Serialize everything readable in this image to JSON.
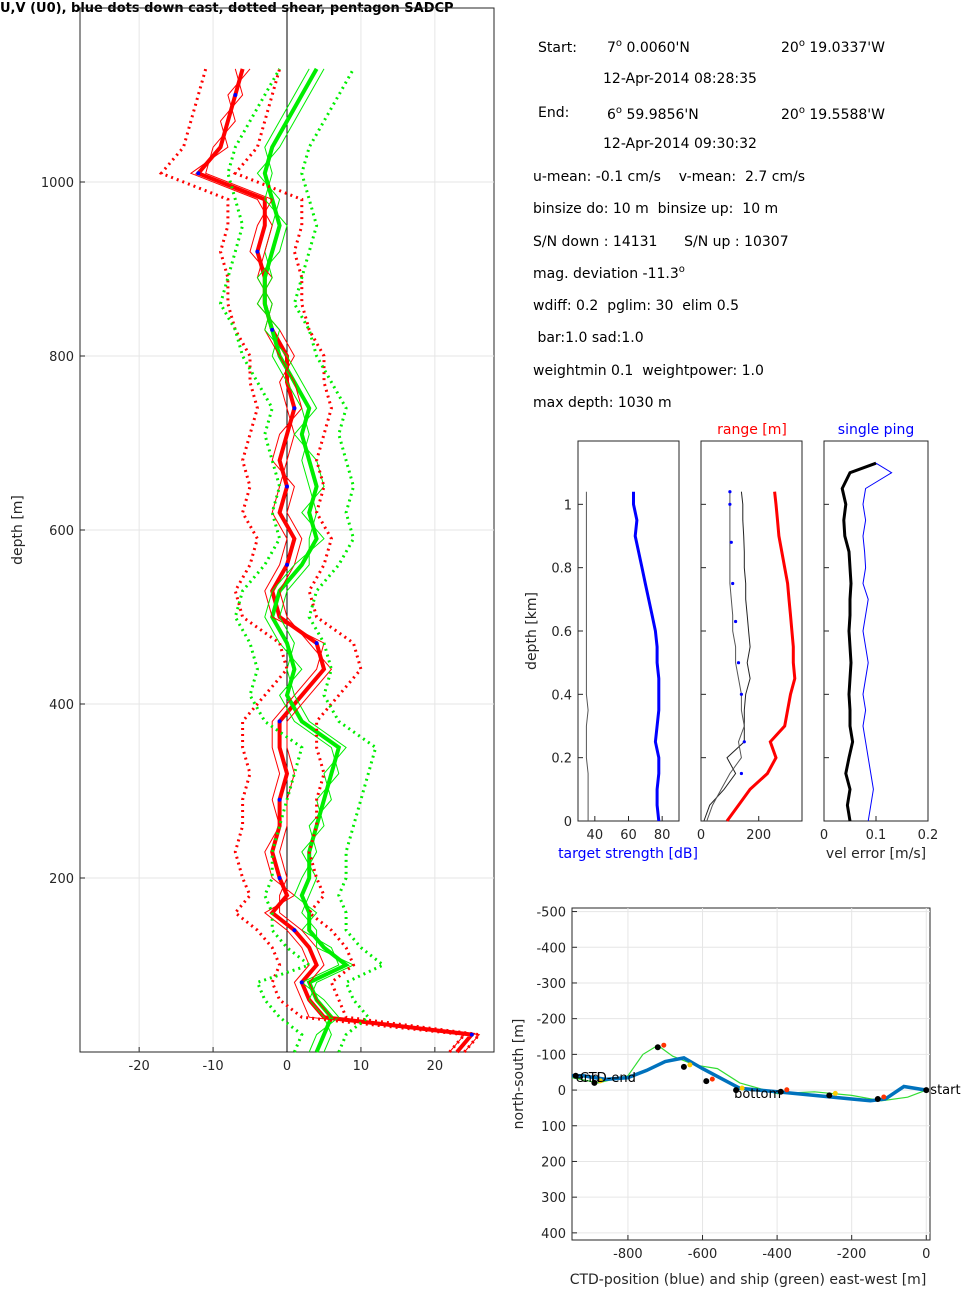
{
  "figure_title": "U,V (U0), blue dots down cast, dotted shear, pentagon SADCP",
  "info": {
    "start_label": "Start:",
    "start_lat_deg": "7",
    "start_lat_min": " 0.0060'N",
    "start_lon_deg": "20",
    "start_lon_min": " 19.0337'W",
    "start_time": "12-Apr-2014 08:28:35",
    "end_label": "End:",
    "end_lat_deg": "6",
    "end_lat_min": " 59.9856'N",
    "end_lon_deg": "20",
    "end_lon_min": " 19.5588'W",
    "end_time": "12-Apr-2014 09:30:32",
    "mean": "u-mean: -0.1 cm/s    v-mean:  2.7 cm/s",
    "binsize": "binsize do: 10 m  binsize up:  10 m",
    "sn": "S/N down : 14131      S/N up : 10307",
    "magdev": "mag. deviation -11.3",
    "params1": "wdiff: 0.2  pglim: 30  elim 0.5",
    "params2": " bar:1.0 sad:1.0",
    "params3": "weightmin 0.1  weightpower: 1.0",
    "maxdepth": "max depth: 1030 m",
    "degree_symbol": "o"
  },
  "colors": {
    "u": "#ff0000",
    "v": "#00ee00",
    "down": "#0000ff",
    "ship": "#33dd33",
    "ctd": "#0072bd",
    "grid": "#e6e6e6"
  },
  "chart_data": [
    {
      "type": "line",
      "id": "velocity_profile",
      "ylabel": "depth [m]",
      "xlim": [
        -28,
        28
      ],
      "ylim": [
        1200,
        0
      ],
      "xticks": [
        -20,
        -10,
        0,
        10,
        20
      ],
      "yticks": [
        200,
        400,
        600,
        800,
        1000
      ],
      "grid": true,
      "depth": [
        0,
        20,
        40,
        60,
        80,
        100,
        120,
        140,
        160,
        180,
        200,
        230,
        260,
        290,
        320,
        350,
        380,
        410,
        440,
        470,
        500,
        530,
        560,
        590,
        620,
        650,
        680,
        710,
        740,
        770,
        800,
        830,
        860,
        890,
        920,
        950,
        980,
        1010,
        1040,
        1070,
        1100,
        1130
      ],
      "series": [
        {
          "values": [
            23,
            25,
            5,
            3,
            2,
            4,
            3,
            1,
            -2,
            0,
            -1,
            -2,
            -1,
            -1,
            0,
            -1,
            -1,
            2,
            5,
            4,
            -1,
            -2,
            0,
            1,
            -1,
            0,
            -1,
            0,
            1,
            0,
            0,
            -2,
            -3,
            -3,
            -4,
            -3,
            -3,
            -12,
            -9,
            -8,
            -7,
            -6
          ]
        },
        {
          "values": [
            4,
            5,
            6,
            4,
            3,
            8,
            5,
            3,
            3,
            2,
            3,
            3,
            4,
            5,
            6,
            7,
            2,
            0,
            1,
            0,
            -2,
            -1,
            2,
            4,
            3,
            4,
            3,
            2,
            3,
            1,
            -1,
            -2,
            -3,
            -3,
            -2,
            -1,
            -2,
            -3,
            -2,
            0,
            2,
            4
          ]
        },
        {
          "values": [
            22,
            24,
            3,
            2,
            1,
            3,
            2,
            0,
            -3,
            1,
            -2,
            -3,
            -1,
            -2,
            -1,
            -2,
            -2,
            1,
            4,
            5,
            -2,
            -3,
            -1,
            0,
            -2,
            -1,
            0,
            1,
            0,
            -1,
            1,
            -1,
            -4,
            -2,
            -5,
            -4,
            -2,
            -11,
            -10,
            -7,
            -8,
            -5
          ]
        },
        {
          "values": [
            3,
            4,
            7,
            5,
            2,
            7,
            6,
            2,
            4,
            1,
            2,
            4,
            3,
            6,
            5,
            8,
            3,
            1,
            0,
            1,
            -1,
            0,
            3,
            3,
            4,
            3,
            2,
            3,
            2,
            0,
            -2,
            -1,
            -4,
            -2,
            -3,
            -2,
            -1,
            -4,
            -1,
            1,
            3,
            5
          ]
        },
        {
          "values": [
            24,
            26,
            6,
            4,
            3,
            5,
            4,
            2,
            -1,
            -1,
            0,
            -1,
            0,
            0,
            1,
            0,
            0,
            3,
            6,
            3,
            0,
            -1,
            1,
            2,
            0,
            1,
            -2,
            -1,
            2,
            1,
            -1,
            -3,
            -2,
            -4,
            -3,
            -2,
            -4,
            -13,
            -8,
            -9,
            -6,
            -7
          ]
        },
        {
          "values": [
            5,
            6,
            5,
            3,
            4,
            9,
            4,
            4,
            2,
            3,
            4,
            2,
            5,
            4,
            7,
            6,
            1,
            -1,
            2,
            -1,
            -3,
            -2,
            1,
            5,
            2,
            5,
            4,
            1,
            4,
            2,
            0,
            -3,
            -2,
            -4,
            -1,
            0,
            -3,
            -2,
            -3,
            -1,
            1,
            3
          ]
        },
        {
          "values": [
            24,
            26,
            8,
            7,
            6,
            9,
            8,
            6,
            3,
            5,
            4,
            3,
            4,
            4,
            5,
            4,
            4,
            7,
            10,
            9,
            4,
            3,
            5,
            6,
            4,
            5,
            4,
            5,
            6,
            5,
            5,
            3,
            2,
            2,
            1,
            2,
            2,
            -7,
            -4,
            -3,
            -2,
            -1
          ]
        },
        {
          "values": [
            22,
            24,
            2,
            -1,
            -2,
            -1,
            -2,
            -4,
            -7,
            -5,
            -6,
            -7,
            -6,
            -6,
            -5,
            -6,
            -6,
            -3,
            0,
            -1,
            -6,
            -7,
            -5,
            -4,
            -6,
            -5,
            -6,
            -5,
            -4,
            -5,
            -5,
            -7,
            -8,
            -8,
            -9,
            -8,
            -8,
            -17,
            -14,
            -13,
            -12,
            -11
          ]
        },
        {
          "values": [
            7,
            8,
            11,
            9,
            8,
            13,
            10,
            8,
            8,
            7,
            8,
            8,
            9,
            10,
            11,
            12,
            7,
            5,
            6,
            5,
            3,
            4,
            7,
            9,
            8,
            9,
            8,
            7,
            8,
            6,
            4,
            3,
            1,
            2,
            3,
            4,
            3,
            2,
            3,
            5,
            7,
            9
          ]
        },
        {
          "values": [
            1,
            2,
            -1,
            -3,
            -4,
            3,
            0,
            -2,
            -2,
            -3,
            -2,
            -2,
            -1,
            0,
            1,
            2,
            -3,
            -5,
            -4,
            -5,
            -7,
            -6,
            -3,
            -1,
            -2,
            -1,
            -2,
            -3,
            -2,
            -4,
            -6,
            -7,
            -9,
            -8,
            -7,
            -6,
            -7,
            -8,
            -7,
            -5,
            -3,
            -1
          ]
        }
      ]
    },
    {
      "type": "line",
      "id": "target_strength",
      "xlabel": "target strength [dB]",
      "ylabel": "depth [km]",
      "xlim": [
        30,
        90
      ],
      "ylim": [
        1.2,
        0
      ],
      "xticks": [
        40,
        60,
        80
      ],
      "yticks": [
        0,
        0.2,
        0.4,
        0.6,
        0.8,
        1
      ],
      "grid": false,
      "depth": [
        0,
        0.05,
        0.1,
        0.15,
        0.2,
        0.25,
        0.3,
        0.35,
        0.4,
        0.45,
        0.5,
        0.55,
        0.6,
        0.65,
        0.7,
        0.75,
        0.8,
        0.85,
        0.9,
        0.95,
        1.0,
        1.04
      ],
      "series": [
        {
          "values": [
            78,
            77,
            77,
            78,
            78,
            76,
            77,
            78,
            78,
            78,
            77,
            77,
            76,
            74,
            72,
            70,
            68,
            66,
            64,
            65,
            63,
            63
          ]
        },
        {
          "values": [
            36,
            36,
            36,
            36,
            35,
            35,
            35,
            36,
            35,
            35,
            35,
            35,
            35,
            35,
            35,
            35,
            35,
            35,
            35,
            35,
            35,
            35
          ]
        }
      ]
    },
    {
      "type": "line",
      "id": "range",
      "title": "range [m]",
      "xlim": [
        0,
        350
      ],
      "ylim": [
        1.2,
        0
      ],
      "xticks": [
        0,
        200
      ],
      "yticks": [
        0,
        0.2,
        0.4,
        0.6,
        0.8,
        1
      ],
      "grid": false,
      "depth": [
        0,
        0.05,
        0.1,
        0.15,
        0.2,
        0.25,
        0.3,
        0.35,
        0.4,
        0.45,
        0.5,
        0.55,
        0.6,
        0.65,
        0.7,
        0.75,
        0.8,
        0.85,
        0.9,
        0.95,
        1.0,
        1.04
      ],
      "series": [
        {
          "values": [
            90,
            130,
            170,
            230,
            260,
            240,
            290,
            300,
            310,
            325,
            320,
            320,
            315,
            310,
            305,
            300,
            290,
            280,
            270,
            265,
            260,
            255
          ]
        },
        {
          "values": [
            10,
            30,
            80,
            120,
            90,
            150,
            150,
            150,
            155,
            170,
            160,
            170,
            165,
            160,
            155,
            155,
            150,
            150,
            148,
            145,
            145,
            140
          ]
        },
        {
          "values": [
            20,
            40,
            70,
            100,
            140,
            130,
            150,
            140,
            140,
            130,
            120,
            120,
            110,
            110,
            105,
            100,
            100,
            100,
            100,
            100,
            100,
            100
          ]
        }
      ],
      "points_x": [
        140,
        150,
        140,
        130,
        120,
        110,
        105,
        100,
        100
      ],
      "points_depth": [
        0.15,
        0.25,
        0.4,
        0.5,
        0.63,
        0.75,
        0.88,
        1.0,
        1.04
      ]
    },
    {
      "type": "line",
      "id": "vel_error",
      "xlabel": "vel error [m/s]",
      "title": "single ping",
      "xlim": [
        0,
        0.2
      ],
      "ylim": [
        1.2,
        0
      ],
      "xticks": [
        0,
        0.1,
        0.2
      ],
      "yticks": [
        0,
        0.2,
        0.4,
        0.6,
        0.8,
        1
      ],
      "grid": false,
      "depth": [
        0,
        0.05,
        0.1,
        0.15,
        0.2,
        0.25,
        0.3,
        0.35,
        0.4,
        0.45,
        0.5,
        0.55,
        0.6,
        0.65,
        0.7,
        0.75,
        0.8,
        0.85,
        0.9,
        0.95,
        1.0,
        1.05,
        1.1,
        1.13
      ],
      "series": [
        {
          "values": [
            0.05,
            0.045,
            0.05,
            0.042,
            0.048,
            0.055,
            0.05,
            0.05,
            0.048,
            0.05,
            0.052,
            0.05,
            0.048,
            0.05,
            0.05,
            0.052,
            0.05,
            0.048,
            0.04,
            0.038,
            0.042,
            0.035,
            0.05,
            0.1
          ]
        },
        {
          "values": [
            0.085,
            0.09,
            0.095,
            0.09,
            0.085,
            0.08,
            0.075,
            0.08,
            0.075,
            0.08,
            0.085,
            0.08,
            0.075,
            0.08,
            0.085,
            0.075,
            0.08,
            0.078,
            0.075,
            0.08,
            0.075,
            0.08,
            0.13,
            0.1
          ]
        }
      ]
    },
    {
      "type": "line",
      "id": "position",
      "xlabel": "CTD-position (blue) and ship (green) east-west [m]",
      "ylabel": "north-south [m]",
      "xlim": [
        -950,
        10
      ],
      "ylim": [
        -510,
        420
      ],
      "xticks": [
        -800,
        -600,
        -400,
        -200,
        0
      ],
      "yticks": [
        -500,
        -400,
        -300,
        -200,
        -100,
        0,
        100,
        200,
        300,
        400
      ],
      "grid": true,
      "ctd_x": [
        0,
        -60,
        -110,
        -150,
        -200,
        -300,
        -400,
        -500,
        -600,
        -650,
        -700,
        -750,
        -800,
        -860,
        -920,
        -950
      ],
      "ctd_y": [
        0,
        -10,
        25,
        30,
        25,
        15,
        5,
        -5,
        -60,
        -90,
        -80,
        -55,
        -35,
        -30,
        -40,
        -40
      ],
      "ship_x": [
        0,
        -50,
        -120,
        -200,
        -300,
        -400,
        -500,
        -560,
        -620,
        -680,
        -720,
        -760,
        -800,
        -880,
        -950
      ],
      "ship_y": [
        0,
        20,
        30,
        15,
        5,
        10,
        -20,
        -60,
        -70,
        -95,
        -125,
        -100,
        -40,
        -20,
        -35
      ],
      "markers_x": [
        0,
        -130,
        -260,
        -390,
        -510,
        -590,
        -650,
        -720,
        -890,
        -940
      ],
      "markers_y": [
        0,
        25,
        15,
        5,
        0,
        -25,
        -65,
        -120,
        -20,
        -40
      ],
      "labels": [
        "start",
        "bottom",
        "end",
        "CTD-end"
      ]
    }
  ]
}
